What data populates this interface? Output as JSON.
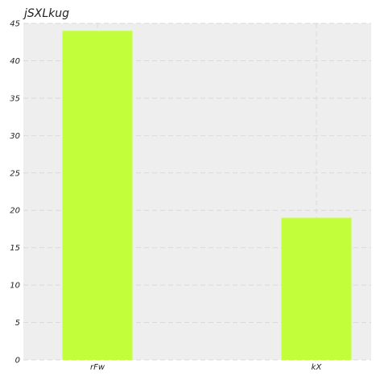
{
  "chart_data": {
    "type": "bar",
    "title": "jSXLkug",
    "categories": [
      "rFw",
      "kX"
    ],
    "values": [
      44,
      19
    ],
    "xlabel": "",
    "ylabel": "",
    "ylim": [
      0,
      45
    ],
    "yticks": [
      0,
      5,
      10,
      15,
      20,
      25,
      30,
      35,
      40,
      45
    ],
    "grid": true,
    "bar_color": "#c2ff3a",
    "plot_background": "#eeeeee"
  }
}
